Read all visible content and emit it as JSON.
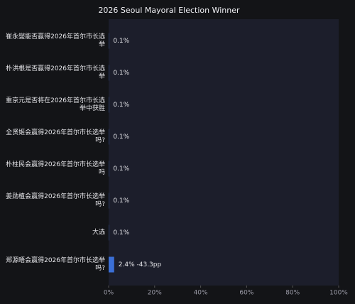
{
  "chart_data": {
    "type": "bar",
    "orientation": "horizontal",
    "title": "2026 Seoul Mayoral Election Winner",
    "categories": [
      "崔永燮能否赢得2026年首尔市长选举",
      "朴洪根是否赢得2026年首尔市长选举",
      "重京元是否将在2026年首尔市长选举中获胜",
      "全贤姬会赢得2026年首尔市长选举吗?",
      "朴柱民会赢得2026年首尔市长选举吗",
      "姜勋植会赢得2026年首尔市长选举吗?",
      "大选",
      "郑源晤会赢得2026年首尔市长选举吗?"
    ],
    "values": [
      0.1,
      0.1,
      0.1,
      0.1,
      0.1,
      0.1,
      0.1,
      2.4
    ],
    "value_labels": [
      "0.1%",
      "0.1%",
      "0.1%",
      "0.1%",
      "0.1%",
      "0.1%",
      "0.1%",
      "2.4% -43.3pp"
    ],
    "color": "#3b6fd6",
    "xlim": [
      0,
      100
    ],
    "xticks": [
      {
        "value": 0,
        "label": "0%"
      },
      {
        "value": 20,
        "label": "20%"
      },
      {
        "value": 40,
        "label": "40%"
      },
      {
        "value": 60,
        "label": "60%"
      },
      {
        "value": 80,
        "label": "80%"
      },
      {
        "value": 100,
        "label": "100%"
      }
    ]
  }
}
